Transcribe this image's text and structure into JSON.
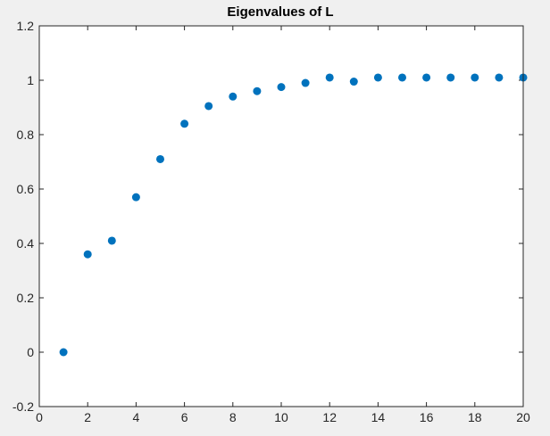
{
  "chart_data": {
    "type": "scatter",
    "title": "Eigenvalues of L",
    "xlabel": "",
    "ylabel": "",
    "xlim": [
      0,
      20
    ],
    "ylim": [
      -0.2,
      1.2
    ],
    "xticks": [
      0,
      2,
      4,
      6,
      8,
      10,
      12,
      14,
      16,
      18,
      20
    ],
    "yticks": [
      -0.2,
      0,
      0.2,
      0.4,
      0.6,
      0.8,
      1,
      1.2
    ],
    "xtick_labels": [
      "0",
      "2",
      "4",
      "6",
      "8",
      "10",
      "12",
      "14",
      "16",
      "18",
      "20"
    ],
    "ytick_labels": [
      "-0.2",
      "0",
      "0.2",
      "0.4",
      "0.6",
      "0.8",
      "1",
      "1.2"
    ],
    "grid": false,
    "marker_color": "#0072bd",
    "axes_background": "#ffffff",
    "figure_background": "#f0f0f0",
    "x": [
      1,
      2,
      3,
      4,
      5,
      6,
      7,
      8,
      9,
      10,
      11,
      12,
      13,
      14,
      15,
      16,
      17,
      18,
      19,
      20
    ],
    "y": [
      0.0,
      0.36,
      0.41,
      0.57,
      0.71,
      0.84,
      0.905,
      0.94,
      0.96,
      0.975,
      0.99,
      1.01,
      0.995,
      1.01,
      1.01,
      1.01,
      1.01,
      1.01,
      1.01,
      1.01
    ]
  }
}
